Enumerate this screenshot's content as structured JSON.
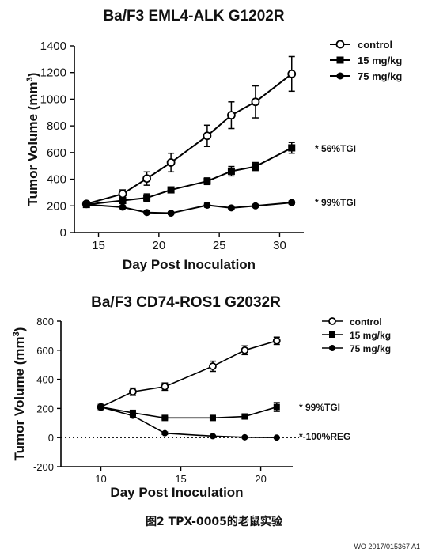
{
  "chart_data": [
    {
      "type": "line",
      "title": "Ba/F3 EML4-ALK G1202R",
      "xlabel": "Day Post Inoculation",
      "ylabel": "Tumor Volume (mm",
      "ylabel_sup": "3",
      "ylabel_tail": ")",
      "xlim": [
        13,
        32
      ],
      "ylim": [
        0,
        1400
      ],
      "xticks": [
        15,
        20,
        25,
        30
      ],
      "yticks": [
        0,
        200,
        400,
        600,
        800,
        1000,
        1200,
        1400
      ],
      "grid": false,
      "legend_position": "top-right",
      "series": [
        {
          "name": "control",
          "marker": "open-circle",
          "x": [
            14,
            17,
            19,
            21,
            24,
            26,
            28,
            31
          ],
          "y": [
            215,
            290,
            405,
            525,
            725,
            880,
            980,
            1190
          ],
          "err": [
            15,
            30,
            50,
            70,
            80,
            100,
            120,
            130
          ]
        },
        {
          "name": "15 mg/kg",
          "marker": "square",
          "x": [
            14,
            17,
            19,
            21,
            24,
            26,
            28,
            31
          ],
          "y": [
            210,
            240,
            260,
            320,
            385,
            460,
            495,
            635
          ],
          "err": [
            10,
            20,
            30,
            20,
            25,
            35,
            30,
            40
          ]
        },
        {
          "name": "75 mg/kg",
          "marker": "circle",
          "x": [
            14,
            17,
            19,
            21,
            24,
            26,
            28,
            31
          ],
          "y": [
            210,
            190,
            150,
            145,
            205,
            185,
            200,
            225
          ],
          "err": [
            8,
            10,
            10,
            10,
            15,
            12,
            10,
            12
          ]
        }
      ],
      "annotations": [
        "* 56%TGI",
        "* 99%TGI"
      ]
    },
    {
      "type": "line",
      "title": "Ba/F3 CD74-ROS1 G2032R",
      "xlabel": "Day Post Inoculation",
      "ylabel": "Tumor Volume (mm",
      "ylabel_sup": "3",
      "ylabel_tail": ")",
      "xlim": [
        7.5,
        22
      ],
      "ylim": [
        -200,
        800
      ],
      "xticks": [
        10,
        15,
        20
      ],
      "yticks": [
        -200,
        0,
        200,
        400,
        600,
        800
      ],
      "grid": false,
      "reference_line_y": 0,
      "legend_position": "top-right",
      "series": [
        {
          "name": "control",
          "marker": "open-circle",
          "x": [
            10,
            12,
            14,
            17,
            19,
            21
          ],
          "y": [
            210,
            315,
            350,
            490,
            600,
            665
          ],
          "err": [
            10,
            25,
            25,
            35,
            30,
            25
          ]
        },
        {
          "name": "15 mg/kg",
          "marker": "square",
          "x": [
            10,
            12,
            14,
            17,
            19,
            21
          ],
          "y": [
            210,
            170,
            135,
            135,
            145,
            210
          ],
          "err": [
            8,
            10,
            8,
            8,
            15,
            30
          ]
        },
        {
          "name": "75 mg/kg",
          "marker": "circle",
          "x": [
            10,
            12,
            14,
            17,
            19,
            21
          ],
          "y": [
            210,
            150,
            30,
            10,
            2,
            0
          ],
          "err": [
            8,
            8,
            8,
            5,
            4,
            3
          ]
        }
      ],
      "annotations": [
        "* 99%TGI",
        "*-100%REG"
      ]
    }
  ],
  "caption": "图2 TPX-0005的老鼠实验",
  "footer": "WO 2017/015367 A1"
}
